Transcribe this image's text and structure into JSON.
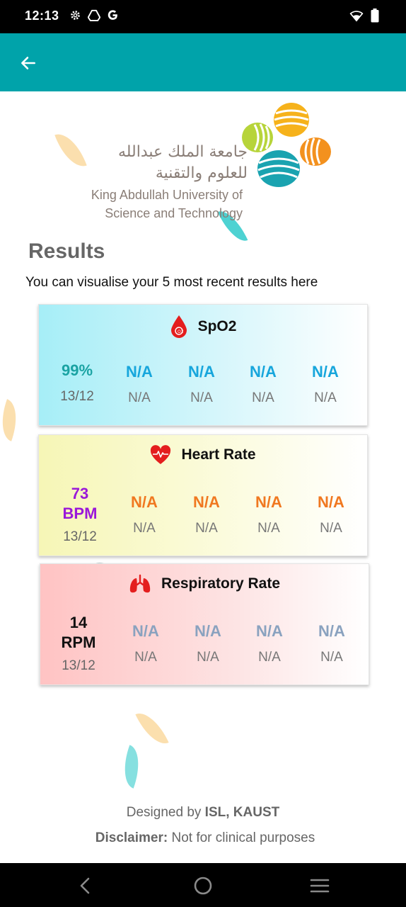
{
  "status_bar": {
    "time": "12:13",
    "left_icons": [
      "gear-icon",
      "drive-icon",
      "google-icon"
    ],
    "right_icons": [
      "wifi-icon",
      "battery-icon"
    ]
  },
  "app_bar": {
    "color": "#00a3aa",
    "back_icon": "arrow-left-icon"
  },
  "logo": {
    "arabic_line1": "جامعة الملك عبدالله",
    "arabic_line2": "للعلوم والتقنية",
    "english_line1": "King Abdullah University of",
    "english_line2": "Science and Technology"
  },
  "results": {
    "title": "Results",
    "subtitle": "You can visualise your 5 most recent results here"
  },
  "cards": {
    "spo2": {
      "title": "SpO2",
      "icon": "blood-drop-icon",
      "readings": [
        {
          "value": "99%",
          "date": "13/12"
        },
        {
          "value": "N/A",
          "date": "N/A"
        },
        {
          "value": "N/A",
          "date": "N/A"
        },
        {
          "value": "N/A",
          "date": "N/A"
        },
        {
          "value": "N/A",
          "date": "N/A"
        }
      ]
    },
    "heart_rate": {
      "title": "Heart Rate",
      "icon": "heart-pulse-icon",
      "readings": [
        {
          "value_line1": "73",
          "value_line2": "BPM",
          "date": "13/12"
        },
        {
          "value": "N/A",
          "date": "N/A"
        },
        {
          "value": "N/A",
          "date": "N/A"
        },
        {
          "value": "N/A",
          "date": "N/A"
        },
        {
          "value": "N/A",
          "date": "N/A"
        }
      ]
    },
    "respiratory_rate": {
      "title": "Respiratory Rate",
      "icon": "lungs-icon",
      "readings": [
        {
          "value_line1": "14",
          "value_line2": "RPM",
          "date": "13/12"
        },
        {
          "value": "N/A",
          "date": "N/A"
        },
        {
          "value": "N/A",
          "date": "N/A"
        },
        {
          "value": "N/A",
          "date": "N/A"
        },
        {
          "value": "N/A",
          "date": "N/A"
        }
      ]
    }
  },
  "colors": {
    "spo2_latest": "#1aa3a3",
    "spo2_na": "#17a6dc",
    "hr_latest": "#9a18d9",
    "hr_na": "#f07820",
    "rr_latest": "#111111",
    "rr_na": "#8aa2bf"
  },
  "footer": {
    "designed_prefix": "Designed by",
    "designed_by": "ISL, KAUST",
    "disclaimer_label": "Disclaimer:",
    "disclaimer_text": "Not for clinical purposes"
  },
  "nav_bar": {
    "icons": [
      "nav-back-icon",
      "nav-home-icon",
      "nav-recents-icon"
    ]
  }
}
